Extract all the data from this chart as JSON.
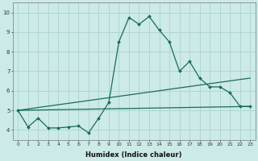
{
  "xlabel": "Humidex (Indice chaleur)",
  "background_color": "#cceae7",
  "grid_color": "#aad4d0",
  "line_color": "#1a6b5a",
  "x": [
    0,
    1,
    2,
    3,
    4,
    5,
    6,
    7,
    8,
    9,
    10,
    11,
    12,
    13,
    14,
    15,
    16,
    17,
    18,
    19,
    20,
    21,
    22,
    23
  ],
  "line1_y": [
    5.0,
    4.15,
    4.6,
    4.1,
    4.1,
    4.15,
    4.2,
    3.85,
    4.6,
    5.4,
    8.5,
    9.75,
    9.4,
    9.8,
    9.1,
    8.5,
    7.0,
    7.5,
    6.65,
    6.2,
    6.2,
    5.9,
    5.2,
    5.2
  ],
  "line2_x": [
    0,
    23
  ],
  "line2_y": [
    5.0,
    6.65
  ],
  "line3_x": [
    0,
    23
  ],
  "line3_y": [
    5.0,
    5.2
  ],
  "ylim": [
    3.5,
    10.5
  ],
  "xlim": [
    -0.5,
    23.5
  ],
  "yticks": [
    4,
    5,
    6,
    7,
    8,
    9,
    10
  ],
  "xticks": [
    0,
    1,
    2,
    3,
    4,
    5,
    6,
    7,
    8,
    9,
    10,
    11,
    12,
    13,
    14,
    15,
    16,
    17,
    18,
    19,
    20,
    21,
    22,
    23
  ],
  "tick_fontsize": 4.5,
  "xlabel_fontsize": 6,
  "figsize": [
    3.2,
    2.0
  ],
  "dpi": 100
}
